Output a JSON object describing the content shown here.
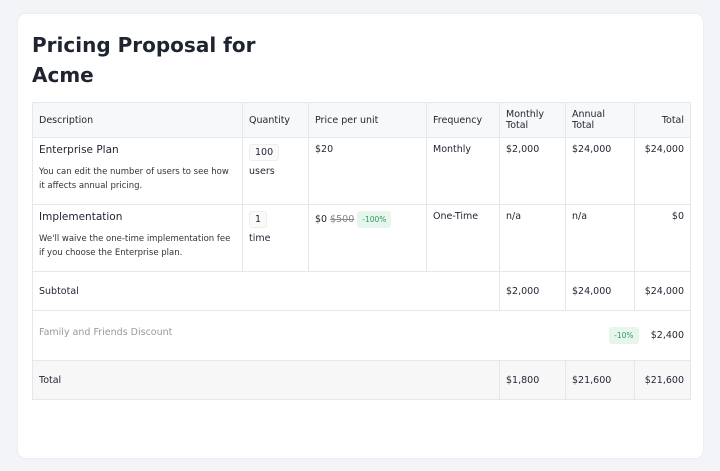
{
  "header": {
    "title": "Pricing Proposal for Acme"
  },
  "table": {
    "columns": [
      "Description",
      "Quantity",
      "Price per unit",
      "Frequency",
      "Monthly Total",
      "Annual Total",
      "Total"
    ],
    "rows": [
      {
        "name": "Enterprise Plan",
        "note": "You can edit the number of users to see how it affects annual pricing.",
        "quantity": "100",
        "unit": "users",
        "price": "$20",
        "frequency": "Monthly",
        "monthly": "$2,000",
        "annual": "$24,000",
        "total": "$24,000"
      },
      {
        "name": "Implementation",
        "note": "We'll waive the one-time implementation fee if you choose the Enterprise plan.",
        "quantity": "1",
        "unit": "time",
        "price": "$0",
        "old_price": "$500",
        "discount": "-100%",
        "frequency": "One-Time",
        "monthly": "n/a",
        "annual": "n/a",
        "total": "$0"
      }
    ],
    "subtotal": {
      "label": "Subtotal",
      "monthly": "$2,000",
      "annual": "$24,000",
      "total": "$24,000"
    },
    "discount": {
      "label": "Family and Friends Discount",
      "badge": "-10%",
      "amount": "$2,400"
    },
    "grand_total": {
      "label": "Total",
      "monthly": "$1,800",
      "annual": "$21,600",
      "total": "$21,600"
    }
  }
}
